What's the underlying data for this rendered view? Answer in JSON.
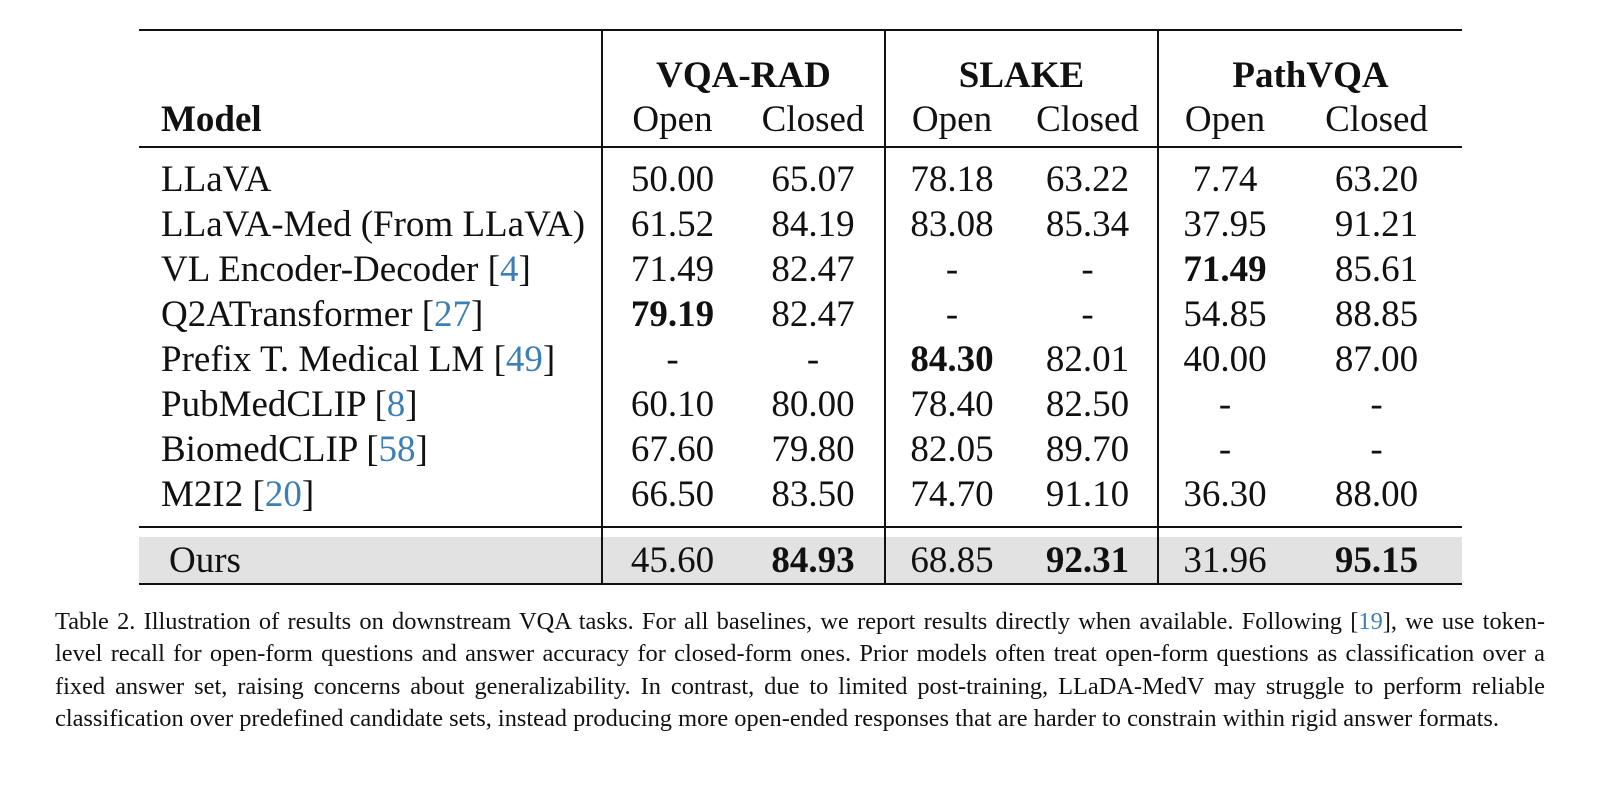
{
  "table": {
    "model_header": "Model",
    "groups": [
      {
        "name": "VQA-RAD",
        "cols": [
          "Open",
          "Closed"
        ]
      },
      {
        "name": "SLAKE",
        "cols": [
          "Open",
          "Closed"
        ]
      },
      {
        "name": "PathVQA",
        "cols": [
          "Open",
          "Closed"
        ]
      }
    ],
    "rows": [
      {
        "model": "LLaVA",
        "ref": "",
        "values": [
          "50.00",
          "65.07",
          "78.18",
          "63.22",
          "7.74",
          "63.20"
        ],
        "bold": [
          false,
          false,
          false,
          false,
          false,
          false
        ]
      },
      {
        "model": "LLaVA-Med (From LLaVA)",
        "ref": "",
        "values": [
          "61.52",
          "84.19",
          "83.08",
          "85.34",
          "37.95",
          "91.21"
        ],
        "bold": [
          false,
          false,
          false,
          false,
          false,
          false
        ]
      },
      {
        "model": "VL Encoder-Decoder",
        "ref": "4",
        "values": [
          "71.49",
          "82.47",
          "-",
          "-",
          "71.49",
          "85.61"
        ],
        "bold": [
          false,
          false,
          false,
          false,
          true,
          false
        ]
      },
      {
        "model": "Q2ATransformer",
        "ref": "27",
        "values": [
          "79.19",
          "82.47",
          "-",
          "-",
          "54.85",
          "88.85"
        ],
        "bold": [
          true,
          false,
          false,
          false,
          false,
          false
        ]
      },
      {
        "model": "Prefix T. Medical LM",
        "ref": "49",
        "values": [
          "-",
          "-",
          "84.30",
          "82.01",
          "40.00",
          "87.00"
        ],
        "bold": [
          false,
          false,
          true,
          false,
          false,
          false
        ]
      },
      {
        "model": "PubMedCLIP",
        "ref": "8",
        "values": [
          "60.10",
          "80.00",
          "78.40",
          "82.50",
          "-",
          "-"
        ],
        "bold": [
          false,
          false,
          false,
          false,
          false,
          false
        ]
      },
      {
        "model": "BiomedCLIP",
        "ref": "58",
        "values": [
          "67.60",
          "79.80",
          "82.05",
          "89.70",
          "-",
          "-"
        ],
        "bold": [
          false,
          false,
          false,
          false,
          false,
          false
        ]
      },
      {
        "model": "M2I2",
        "ref": "20",
        "values": [
          "66.50",
          "83.50",
          "74.70",
          "91.10",
          "36.30",
          "88.00"
        ],
        "bold": [
          false,
          false,
          false,
          false,
          false,
          false
        ]
      }
    ],
    "ours": {
      "model": "Ours",
      "values": [
        "45.60",
        "84.93",
        "68.85",
        "92.31",
        "31.96",
        "95.15"
      ],
      "bold": [
        false,
        true,
        false,
        true,
        false,
        true
      ]
    }
  },
  "caption": {
    "before_ref": "Table 2. Illustration of results on downstream VQA tasks. For all baselines, we report results directly when available. Following [",
    "ref": "19",
    "after_ref": "], we use token-level recall for open-form questions and answer accuracy for closed-form ones. Prior models often treat open-form questions as classification over a fixed answer set, raising concerns about generalizability. In contrast, due to limited post-training, LLaDA-MedV may struggle to perform reliable classification over predefined candidate sets, instead producing more open-ended responses that are harder to constrain within rigid answer formats."
  },
  "colors": {
    "citation": "#3d7fb4",
    "highlight_row": "#e2e2e2"
  }
}
